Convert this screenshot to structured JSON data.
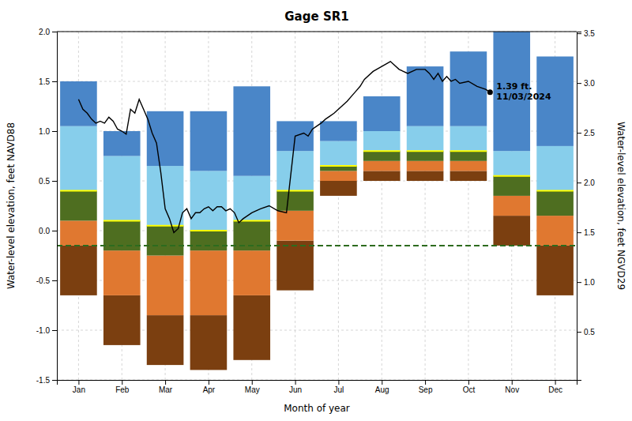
{
  "chart_data": {
    "type": "bar",
    "title": "Gage SR1",
    "xlabel": "Month of year",
    "ylabel": "Water-level elevation, feet NAVD88",
    "y2label": "Water-level elevation, feet NGVD29",
    "x": [
      1,
      2,
      3,
      4,
      5,
      6,
      7,
      8,
      9,
      10,
      11,
      12
    ],
    "xlim": [
      0.5,
      12.5
    ],
    "xticks": [
      {
        "value": 1,
        "label": "Jan"
      },
      {
        "value": 2,
        "label": "Feb"
      },
      {
        "value": 3,
        "label": "Mar"
      },
      {
        "value": 4,
        "label": "Apr"
      },
      {
        "value": 5,
        "label": "May"
      },
      {
        "value": 6,
        "label": "Jun"
      },
      {
        "value": 7,
        "label": "Jul"
      },
      {
        "value": 8,
        "label": "Aug"
      },
      {
        "value": 9,
        "label": "Sep"
      },
      {
        "value": 10,
        "label": "Oct"
      },
      {
        "value": 11,
        "label": "Nov"
      },
      {
        "value": 12,
        "label": "Dec"
      }
    ],
    "ylim": [
      -1.5,
      2.0
    ],
    "yticks": [
      {
        "value": -1.5,
        "label": "-1.5"
      },
      {
        "value": -1.0,
        "label": "-1.0"
      },
      {
        "value": -0.5,
        "label": "-0.5"
      },
      {
        "value": 0.0,
        "label": "0.0"
      },
      {
        "value": 0.5,
        "label": "0.5"
      },
      {
        "value": 1.0,
        "label": "1.0"
      },
      {
        "value": 1.5,
        "label": "1.5"
      },
      {
        "value": 2.0,
        "label": "2.0"
      }
    ],
    "y2lim": [
      0.017,
      3.517
    ],
    "y2ticks": [
      {
        "value": 0.5,
        "label": "0.5"
      },
      {
        "value": 1.0,
        "label": "1.0"
      },
      {
        "value": 1.5,
        "label": "1.5"
      },
      {
        "value": 2.0,
        "label": "2.0"
      },
      {
        "value": 2.5,
        "label": "2.5"
      },
      {
        "value": 3.0,
        "label": "3.0"
      },
      {
        "value": 3.5,
        "label": "3.5"
      }
    ],
    "grid": true,
    "series": [
      {
        "type": "bar",
        "color": "#7B3F10",
        "base": [
          -0.65,
          -1.15,
          -1.35,
          -1.4,
          -1.3,
          -0.6,
          0.35,
          0.5,
          0.5,
          0.5,
          -0.15,
          -0.65
        ],
        "values": [
          -0.15,
          -0.65,
          -0.85,
          -0.85,
          -0.65,
          -0.1,
          0.5,
          0.6,
          0.6,
          0.6,
          0.15,
          -0.15
        ]
      },
      {
        "type": "bar",
        "color": "#E07830",
        "base": [
          -0.15,
          -0.65,
          -0.85,
          -0.85,
          -0.65,
          -0.1,
          0.5,
          0.6,
          0.6,
          0.6,
          0.15,
          -0.15
        ],
        "values": [
          0.1,
          -0.2,
          -0.25,
          -0.2,
          -0.2,
          0.2,
          0.6,
          0.7,
          0.7,
          0.7,
          0.35,
          0.15
        ]
      },
      {
        "type": "bar",
        "color": "#4E6E20",
        "base": [
          0.1,
          -0.2,
          -0.25,
          -0.2,
          -0.2,
          0.2,
          0.6,
          0.7,
          0.7,
          0.7,
          0.35,
          0.15
        ],
        "values": [
          0.4,
          0.1,
          0.05,
          0.0,
          0.1,
          0.4,
          0.65,
          0.8,
          0.8,
          0.8,
          0.55,
          0.4
        ]
      },
      {
        "type": "bar",
        "color": "#87CEEB",
        "base": [
          0.4,
          0.1,
          0.05,
          0.0,
          0.1,
          0.4,
          0.65,
          0.8,
          0.8,
          0.8,
          0.55,
          0.4
        ],
        "values": [
          1.05,
          0.75,
          0.65,
          0.6,
          0.55,
          0.8,
          0.9,
          1.0,
          1.05,
          1.05,
          0.8,
          0.85
        ]
      },
      {
        "type": "bar",
        "color": "#4A86C8",
        "base": [
          1.05,
          0.75,
          0.65,
          0.6,
          0.55,
          0.8,
          0.9,
          1.0,
          1.05,
          1.05,
          0.8,
          0.85
        ],
        "values": [
          1.5,
          1.0,
          1.2,
          1.2,
          1.45,
          1.1,
          1.1,
          1.35,
          1.65,
          1.8,
          2.0,
          1.75
        ]
      },
      {
        "type": "segment",
        "color": "#FFFF00",
        "values": [
          0.4,
          0.1,
          0.05,
          0.0,
          0.1,
          0.4,
          0.65,
          0.8,
          0.8,
          0.8,
          0.55,
          0.4
        ]
      },
      {
        "type": "line",
        "color": "#000000",
        "x": [
          1.0,
          1.1,
          1.2,
          1.3,
          1.4,
          1.5,
          1.6,
          1.7,
          1.8,
          1.9,
          2.0,
          2.1,
          2.2,
          2.3,
          2.4,
          2.5,
          2.6,
          2.7,
          2.8,
          2.9,
          3.0,
          3.1,
          3.2,
          3.3,
          3.4,
          3.5,
          3.6,
          3.7,
          3.8,
          3.9,
          4.0,
          4.1,
          4.2,
          4.3,
          4.4,
          4.5,
          4.6,
          4.7,
          4.8,
          4.9,
          5.0,
          5.2,
          5.4,
          5.6,
          5.8,
          6.0,
          6.2,
          6.3,
          6.4,
          6.5,
          6.6,
          6.7,
          6.8,
          6.9,
          7.0,
          7.1,
          7.2,
          7.3,
          7.4,
          7.5,
          7.6,
          7.8,
          8.0,
          8.2,
          8.4,
          8.6,
          8.8,
          9.0,
          9.1,
          9.2,
          9.3,
          9.4,
          9.5,
          9.6,
          9.7,
          9.8,
          10.0,
          10.2,
          10.4,
          10.5
        ],
        "values": [
          1.32,
          1.22,
          1.18,
          1.12,
          1.08,
          1.1,
          1.08,
          1.14,
          1.1,
          1.02,
          1.0,
          0.97,
          1.22,
          1.18,
          1.32,
          1.22,
          1.12,
          0.98,
          0.88,
          0.58,
          0.22,
          0.12,
          -0.02,
          0.02,
          0.18,
          0.22,
          0.12,
          0.18,
          0.18,
          0.22,
          0.24,
          0.2,
          0.24,
          0.24,
          0.2,
          0.22,
          0.18,
          0.08,
          0.12,
          0.15,
          0.18,
          0.22,
          0.25,
          0.2,
          0.18,
          0.95,
          0.98,
          0.95,
          1.02,
          1.05,
          1.08,
          1.12,
          1.15,
          1.18,
          1.22,
          1.26,
          1.3,
          1.35,
          1.4,
          1.45,
          1.52,
          1.6,
          1.65,
          1.7,
          1.62,
          1.58,
          1.62,
          1.62,
          1.58,
          1.52,
          1.58,
          1.5,
          1.55,
          1.5,
          1.52,
          1.48,
          1.5,
          1.45,
          1.42,
          1.39
        ]
      }
    ],
    "reference_lines": [
      {
        "value": -0.15,
        "color": "#2D6B1E",
        "line_style": "dashed"
      }
    ],
    "annotations": [
      {
        "x": 10.5,
        "y": 1.39,
        "marker": "circle",
        "color": "#000000",
        "lines": [
          "1.39 ft.",
          "11/03/2024"
        ]
      }
    ]
  }
}
